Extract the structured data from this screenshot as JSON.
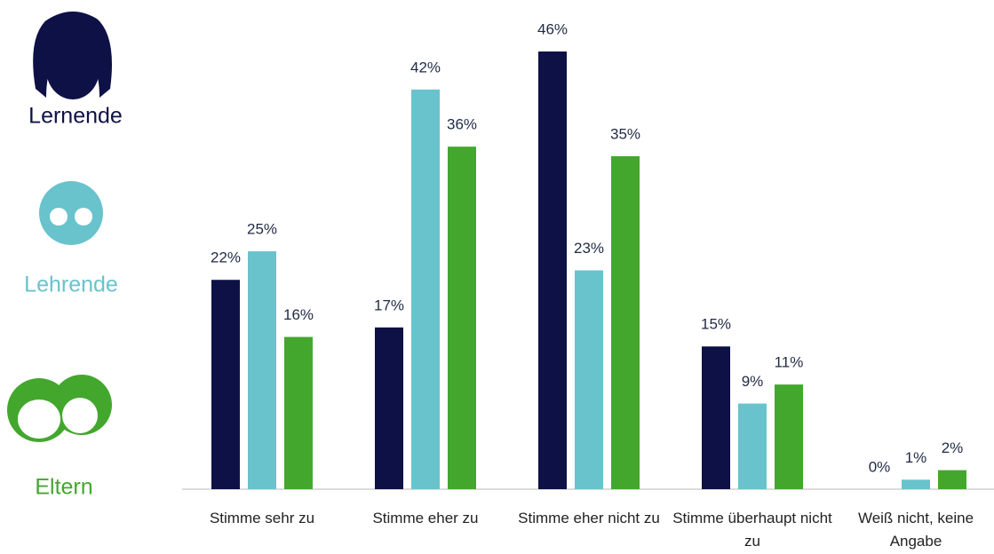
{
  "chart_data": {
    "type": "bar",
    "categories": [
      "Stimme sehr zu",
      "Stimme eher zu",
      "Stimme eher nicht zu",
      "Stimme überhaupt nicht zu",
      "Weiß nicht, keine Angabe"
    ],
    "series": [
      {
        "name": "Lernende",
        "color": "#0e1146",
        "values": [
          22,
          17,
          46,
          15,
          0
        ],
        "value_labels": [
          "22%",
          "17%",
          "46%",
          "15%",
          "0%"
        ]
      },
      {
        "name": "Lehrende",
        "color": "#68c3cc",
        "values": [
          25,
          42,
          23,
          9,
          1
        ],
        "value_labels": [
          "25%",
          "42%",
          "23%",
          "9%",
          "1%"
        ]
      },
      {
        "name": "Eltern",
        "color": "#43a72e",
        "values": [
          16,
          36,
          35,
          11,
          2
        ],
        "value_labels": [
          "16%",
          "36%",
          "35%",
          "11%",
          "2%"
        ]
      }
    ]
  }
}
